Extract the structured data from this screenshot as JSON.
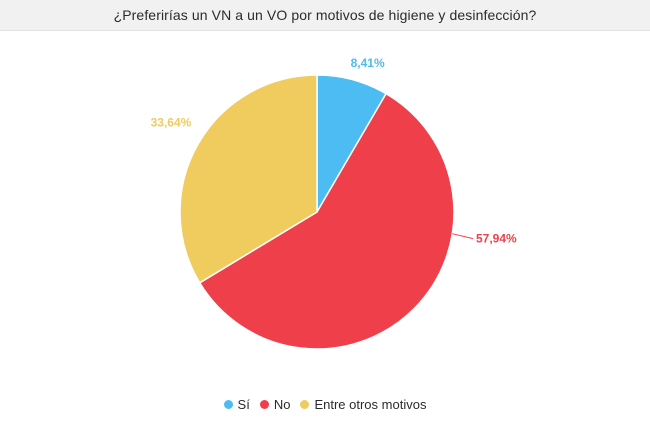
{
  "title": "¿Preferirías un VN a un VO por motivos de higiene y desinfección?",
  "chart_data": {
    "type": "pie",
    "title": "¿Preferirías un VN a un VO por motivos de higiene y desinfección?",
    "start_angle_deg": 0,
    "direction": "clockwise",
    "legend_position": "bottom",
    "slices": [
      {
        "name": "Sí",
        "value": 8.41,
        "label": "8,41%",
        "color": "#4dbcf2"
      },
      {
        "name": "No",
        "value": 57.94,
        "label": "57,94%",
        "color": "#ef3f4a"
      },
      {
        "name": "Entre otros motivos",
        "value": 33.64,
        "label": "33,64%",
        "color": "#f0cb5e"
      }
    ]
  }
}
